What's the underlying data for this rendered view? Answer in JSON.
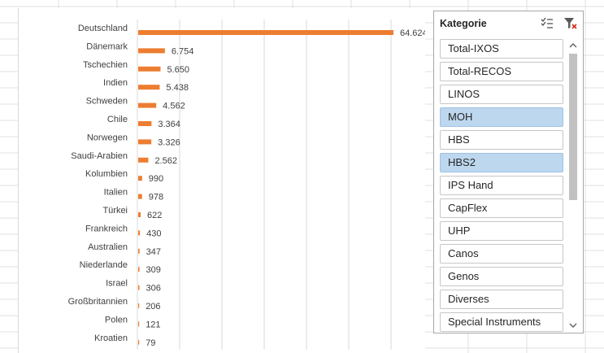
{
  "chart_data": {
    "type": "bar",
    "orientation": "horizontal",
    "title": "",
    "xlabel": "",
    "ylabel": "",
    "categories": [
      "Deutschland",
      "Dänemark",
      "Tschechien",
      "Indien",
      "Schweden",
      "Chile",
      "Norwegen",
      "Saudi-Arabien",
      "Kolumbien",
      "Italien",
      "Türkei",
      "Frankreich",
      "Australien",
      "Niederlande",
      "Israel",
      "Großbritannien",
      "Polen",
      "Kroatien"
    ],
    "values": [
      64624,
      6754,
      5650,
      5438,
      4562,
      3364,
      3326,
      2562,
      990,
      978,
      622,
      430,
      347,
      309,
      306,
      206,
      121,
      79
    ],
    "value_labels": [
      "64.624",
      "6.754",
      "5.650",
      "5.438",
      "4.562",
      "3.364",
      "3.326",
      "2.562",
      "990",
      "978",
      "622",
      "430",
      "347",
      "309",
      "306",
      "206",
      "121",
      "79"
    ],
    "xlim": [
      0,
      64624
    ],
    "bar_color": "#ed7d31",
    "grid": true,
    "legend": "none"
  },
  "slicer": {
    "title": "Kategorie",
    "multiselect_icon": "multi-select-icon",
    "clear_icon": "clear-filter-icon",
    "items": [
      {
        "label": "Total-IXOS",
        "selected": false
      },
      {
        "label": "Total-RECOS",
        "selected": false
      },
      {
        "label": "LINOS",
        "selected": false
      },
      {
        "label": "MOH",
        "selected": true
      },
      {
        "label": "HBS",
        "selected": false
      },
      {
        "label": "HBS2",
        "selected": true
      },
      {
        "label": "IPS Hand",
        "selected": false
      },
      {
        "label": "CapFlex",
        "selected": false
      },
      {
        "label": "UHP",
        "selected": false
      },
      {
        "label": "Canos",
        "selected": false
      },
      {
        "label": "Genos",
        "selected": false
      },
      {
        "label": "Diverses",
        "selected": false
      },
      {
        "label": "Special Instruments",
        "selected": false
      }
    ],
    "selected_color": "#bdd7ee"
  }
}
